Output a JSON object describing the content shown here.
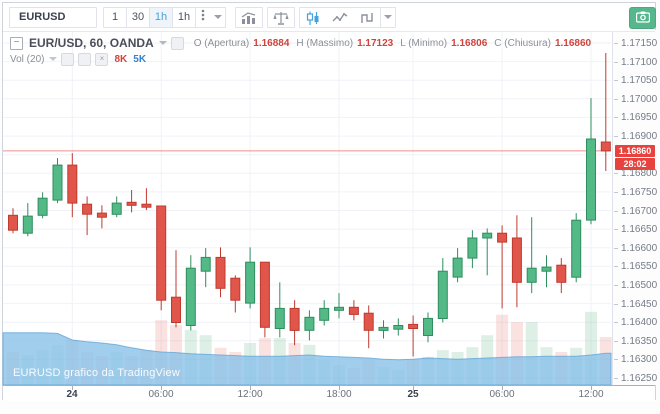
{
  "toolbar": {
    "symbol": "EURUSD",
    "intervals": [
      {
        "label": "1",
        "active": false
      },
      {
        "label": "30",
        "active": false
      },
      {
        "label": "1h",
        "active": true
      },
      {
        "label": "1h",
        "active": false
      }
    ],
    "icons": [
      "more-options-icon",
      "dropdown-icon",
      "bar-chart-icon",
      "compare-scales-icon",
      "candlestick-style-icon",
      "line-chart-icon",
      "step-line-icon",
      "style-dropdown-icon",
      "camera-icon"
    ],
    "active_icon_color": "#47a1d8",
    "camera_color": "#57b78c"
  },
  "legend": {
    "title": "EUR/USD, 60, OANDA",
    "ohlc": [
      {
        "label": "O (Apertura)",
        "value": "1.16884"
      },
      {
        "label": "H (Massimo)",
        "value": "1.17123"
      },
      {
        "label": "L (Minimo)",
        "value": "1.16806"
      },
      {
        "label": "C (Chiusura)",
        "value": "1.16860"
      }
    ],
    "value_color": "#d0433c"
  },
  "volume_legend": {
    "label": "Vol (20)",
    "current": "8K",
    "current_color": "#d0433c",
    "ma": "5K",
    "ma_color": "#3282d0"
  },
  "price_axis": {
    "labels": [
      "1.17150",
      "1.17100",
      "1.17050",
      "1.17000",
      "1.16950",
      "1.16900",
      "1.16800",
      "1.16750",
      "1.16700",
      "1.16650",
      "1.16600",
      "1.16550",
      "1.16500",
      "1.16450",
      "1.16400",
      "1.16350",
      "1.16300",
      "1.16250"
    ],
    "last_price": "1.16860",
    "countdown": "28:02",
    "badge_color": "#e8423e"
  },
  "time_axis": {
    "ticks": [
      {
        "label": "24",
        "index": 4,
        "bold": true
      },
      {
        "label": "06:00",
        "index": 10,
        "bold": false
      },
      {
        "label": "12:00",
        "index": 16,
        "bold": false
      },
      {
        "label": "18:00",
        "index": 22,
        "bold": false
      },
      {
        "label": "25",
        "index": 27,
        "bold": true
      },
      {
        "label": "06:00",
        "index": 33,
        "bold": false
      },
      {
        "label": "12:00",
        "index": 39,
        "bold": false
      }
    ]
  },
  "watermark": "EURUSD grafico da TradingView",
  "chart_data": {
    "type": "candlestick+volume",
    "symbol": "EUR/USD",
    "interval": "60",
    "exchange": "OANDA",
    "y_range": {
      "min": 1.1625,
      "max": 1.1715,
      "tick": 0.0005
    },
    "last_price": 1.1686,
    "up_color": "#53b987",
    "up_border": "#2f8e5e",
    "down_color": "#e0564a",
    "down_border": "#c0392f",
    "volume_area_color": "#87c0e8",
    "candles": [
      {
        "o": 1.16687,
        "h": 1.16706,
        "l": 1.16639,
        "c": 1.16647,
        "v": 5.5
      },
      {
        "o": 1.16639,
        "h": 1.1672,
        "l": 1.16631,
        "c": 1.16685,
        "v": 5.0
      },
      {
        "o": 1.16687,
        "h": 1.16749,
        "l": 1.16679,
        "c": 1.16733,
        "v": 5.8
      },
      {
        "o": 1.16728,
        "h": 1.16841,
        "l": 1.1672,
        "c": 1.16822,
        "v": 6.7
      },
      {
        "o": 1.16822,
        "h": 1.16854,
        "l": 1.16682,
        "c": 1.1672,
        "v": 7.5
      },
      {
        "o": 1.16717,
        "h": 1.16738,
        "l": 1.16634,
        "c": 1.1669,
        "v": 5.5
      },
      {
        "o": 1.16693,
        "h": 1.16714,
        "l": 1.16652,
        "c": 1.16682,
        "v": 4.8
      },
      {
        "o": 1.1669,
        "h": 1.16738,
        "l": 1.16682,
        "c": 1.1672,
        "v": 5.5
      },
      {
        "o": 1.16722,
        "h": 1.16755,
        "l": 1.16695,
        "c": 1.16714,
        "v": 4.8
      },
      {
        "o": 1.16717,
        "h": 1.1676,
        "l": 1.16701,
        "c": 1.16709,
        "v": 5.8
      },
      {
        "o": 1.16712,
        "h": 1.16712,
        "l": 1.16432,
        "c": 1.16459,
        "v": 10.8
      },
      {
        "o": 1.16467,
        "h": 1.16593,
        "l": 1.16386,
        "c": 1.16399,
        "v": 10.0
      },
      {
        "o": 1.16391,
        "h": 1.1658,
        "l": 1.16378,
        "c": 1.16545,
        "v": 9.2
      },
      {
        "o": 1.16537,
        "h": 1.16599,
        "l": 1.16494,
        "c": 1.16574,
        "v": 8.3
      },
      {
        "o": 1.16574,
        "h": 1.16601,
        "l": 1.16467,
        "c": 1.16491,
        "v": 6.2
      },
      {
        "o": 1.16518,
        "h": 1.16526,
        "l": 1.16426,
        "c": 1.16459,
        "v": 5.5
      },
      {
        "o": 1.16451,
        "h": 1.16601,
        "l": 1.16437,
        "c": 1.16561,
        "v": 7.0
      },
      {
        "o": 1.16561,
        "h": 1.16561,
        "l": 1.16359,
        "c": 1.16386,
        "v": 7.8
      },
      {
        "o": 1.16383,
        "h": 1.16507,
        "l": 1.16359,
        "c": 1.16437,
        "v": 7.8
      },
      {
        "o": 1.16437,
        "h": 1.16459,
        "l": 1.16338,
        "c": 1.16378,
        "v": 7.0
      },
      {
        "o": 1.16378,
        "h": 1.16432,
        "l": 1.16351,
        "c": 1.16413,
        "v": 6.7
      },
      {
        "o": 1.16405,
        "h": 1.16459,
        "l": 1.16391,
        "c": 1.16437,
        "v": 4.2
      },
      {
        "o": 1.16432,
        "h": 1.16478,
        "l": 1.1641,
        "c": 1.1644,
        "v": 3.3
      },
      {
        "o": 1.1644,
        "h": 1.16459,
        "l": 1.16405,
        "c": 1.16421,
        "v": 2.8
      },
      {
        "o": 1.16424,
        "h": 1.16445,
        "l": 1.1633,
        "c": 1.16378,
        "v": 4.2
      },
      {
        "o": 1.16378,
        "h": 1.16405,
        "l": 1.16356,
        "c": 1.16386,
        "v": 3.0
      },
      {
        "o": 1.16381,
        "h": 1.1641,
        "l": 1.16364,
        "c": 1.16391,
        "v": 2.5
      },
      {
        "o": 1.16394,
        "h": 1.16418,
        "l": 1.16308,
        "c": 1.16383,
        "v": 4.2
      },
      {
        "o": 1.16364,
        "h": 1.16426,
        "l": 1.16346,
        "c": 1.1641,
        "v": 4.7
      },
      {
        "o": 1.1641,
        "h": 1.16572,
        "l": 1.16399,
        "c": 1.16537,
        "v": 5.8
      },
      {
        "o": 1.16521,
        "h": 1.16599,
        "l": 1.16507,
        "c": 1.16572,
        "v": 5.5
      },
      {
        "o": 1.16572,
        "h": 1.16647,
        "l": 1.16545,
        "c": 1.16626,
        "v": 6.3
      },
      {
        "o": 1.16626,
        "h": 1.16652,
        "l": 1.16526,
        "c": 1.16639,
        "v": 8.3
      },
      {
        "o": 1.16639,
        "h": 1.1666,
        "l": 1.16437,
        "c": 1.16615,
        "v": 11.7
      },
      {
        "o": 1.16626,
        "h": 1.16687,
        "l": 1.1644,
        "c": 1.16507,
        "v": 10.5
      },
      {
        "o": 1.16507,
        "h": 1.16682,
        "l": 1.16478,
        "c": 1.16545,
        "v": 10.5
      },
      {
        "o": 1.16537,
        "h": 1.1658,
        "l": 1.16494,
        "c": 1.16548,
        "v": 6.3
      },
      {
        "o": 1.16553,
        "h": 1.16572,
        "l": 1.16478,
        "c": 1.16507,
        "v": 5.5
      },
      {
        "o": 1.16521,
        "h": 1.16693,
        "l": 1.16507,
        "c": 1.16674,
        "v": 6.2
      },
      {
        "o": 1.16674,
        "h": 1.17002,
        "l": 1.16663,
        "c": 1.16892,
        "v": 12.2
      },
      {
        "o": 1.16884,
        "h": 1.17123,
        "l": 1.16806,
        "c": 1.1686,
        "v": 8.0
      }
    ],
    "volume_ma_k": [
      8.7,
      8.7,
      8.7,
      8.6,
      7.5,
      7.2,
      7.0,
      6.7,
      6.2,
      5.8,
      5.5,
      5.4,
      5.2,
      5.1,
      5.0,
      4.9,
      4.8,
      4.8,
      4.8,
      4.9,
      5.0,
      4.8,
      4.7,
      4.6,
      4.5,
      4.3,
      4.2,
      4.3,
      4.5,
      4.4,
      4.3,
      4.4,
      4.5,
      4.6,
      4.7,
      4.7,
      4.8,
      4.8,
      4.8,
      5.0,
      5.3
    ]
  }
}
